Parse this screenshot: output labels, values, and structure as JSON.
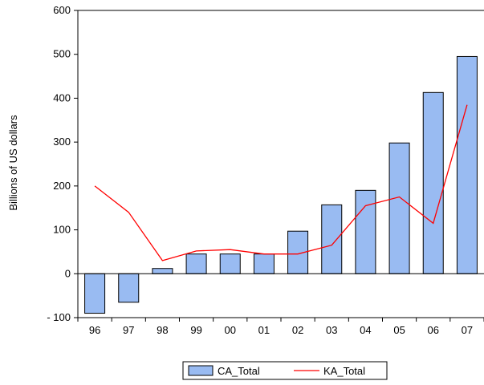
{
  "chart_data": {
    "type": "bar",
    "categories": [
      "96",
      "97",
      "98",
      "99",
      "00",
      "01",
      "02",
      "03",
      "04",
      "05",
      "06",
      "07"
    ],
    "series": [
      {
        "name": "CA_Total",
        "type": "bar",
        "values": [
          -90,
          -65,
          12,
          45,
          45,
          45,
          97,
          157,
          190,
          298,
          413,
          495
        ]
      },
      {
        "name": "KA_Total",
        "type": "line",
        "values": [
          200,
          140,
          30,
          52,
          55,
          45,
          45,
          65,
          155,
          175,
          115,
          385
        ]
      }
    ],
    "ylabel": "Billions of US dollars",
    "xlabel": "",
    "ylim": [
      -100,
      600
    ],
    "yticks": [
      -100,
      0,
      100,
      200,
      300,
      400,
      500,
      600
    ],
    "ytick_labels": [
      "- 100",
      "0",
      "100",
      "200",
      "300",
      "400",
      "500",
      "600"
    ],
    "grid": false,
    "legend_position": "bottom-center",
    "colors": {
      "bar_fill": "#99bbf2",
      "bar_stroke": "#000000",
      "line": "#ff0000",
      "axis": "#000000"
    }
  }
}
